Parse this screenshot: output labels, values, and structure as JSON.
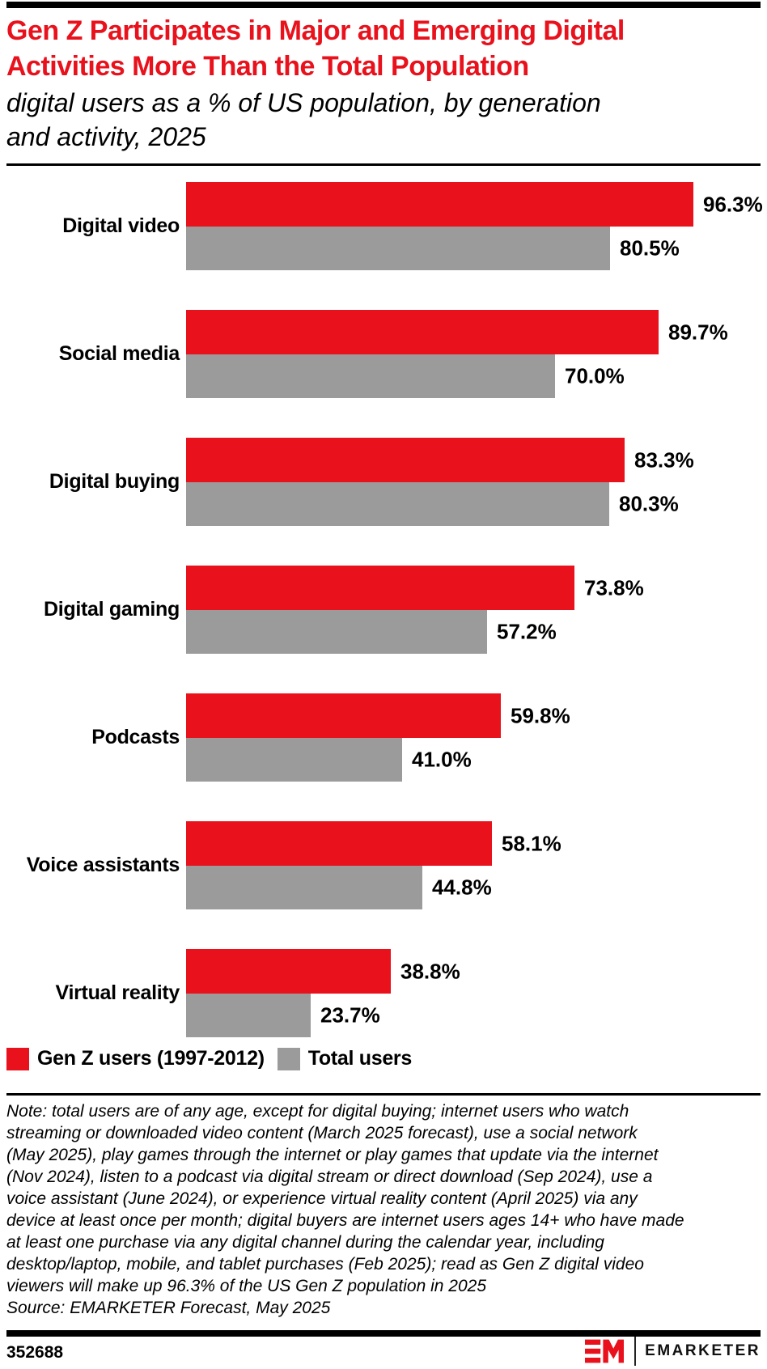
{
  "colors": {
    "brand_red": "#e8111c",
    "bar_gray": "#9b9b9b",
    "black": "#000000"
  },
  "header": {
    "title_lines": [
      "Gen Z Participates in Major and Emerging Digital",
      "Activities More Than the Total Population"
    ],
    "subtitle_lines": [
      "digital users as a % of US population, by generation",
      "and activity, 2025"
    ]
  },
  "chart_data": {
    "type": "bar",
    "orientation": "horizontal",
    "title": "Gen Z Participates in Major and Emerging Digital Activities More Than the Total Population",
    "subtitle": "digital users as a % of US population, by generation and activity, 2025",
    "categories": [
      "Digital video",
      "Social media",
      "Digital buying",
      "Digital gaming",
      "Podcasts",
      "Voice assistants",
      "Virtual reality"
    ],
    "series": [
      {
        "name": "Gen Z users (1997-2012)",
        "color": "#e8111c",
        "values": [
          96.3,
          89.7,
          83.3,
          73.8,
          59.8,
          58.1,
          38.8
        ],
        "labels": [
          "96.3%",
          "89.7%",
          "83.3%",
          "73.8%",
          "59.8%",
          "58.1%",
          "38.8%"
        ]
      },
      {
        "name": "Total users",
        "color": "#9b9b9b",
        "values": [
          80.5,
          70.0,
          80.3,
          57.2,
          41.0,
          44.8,
          23.7
        ],
        "labels": [
          "80.5%",
          "70.0%",
          "80.3%",
          "57.2%",
          "41.0%",
          "44.8%",
          "23.7%"
        ]
      }
    ],
    "value_suffix": "%",
    "xlim": [
      0,
      100
    ],
    "grid": false,
    "legend_position": "bottom-left"
  },
  "note": {
    "lines": [
      "Note: total users are of any age, except for digital buying; internet users who watch",
      "streaming or downloaded video content (March 2025 forecast), use a social network",
      "(May 2025), play games through the internet or play games that update via the internet",
      "(Nov 2024), listen to a podcast via digital stream or direct download (Sep 2024), use a",
      "voice assistant (June 2024), or experience virtual reality content (April 2025) via any",
      "device at least once per month; digital buyers are internet users ages 14+ who have made",
      "at least one purchase via any digital channel during the calendar year, including",
      "desktop/laptop, mobile, and tablet purchases (Feb 2025); read as Gen Z digital video",
      "viewers will make up 96.3% of the US Gen Z population in 2025"
    ],
    "source": "Source: EMARKETER Forecast, May 2025"
  },
  "footer": {
    "chart_id": "352688",
    "brand_name": "EMARKETER"
  }
}
